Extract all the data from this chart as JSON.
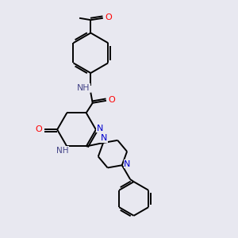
{
  "bg_color": "#e8e8f0",
  "atom_colors": {
    "N": "#0000cc",
    "O": "#ff0000",
    "NH": "#444488"
  },
  "bond_color": "#000000",
  "bond_width": 1.4,
  "dbo": 0.07
}
